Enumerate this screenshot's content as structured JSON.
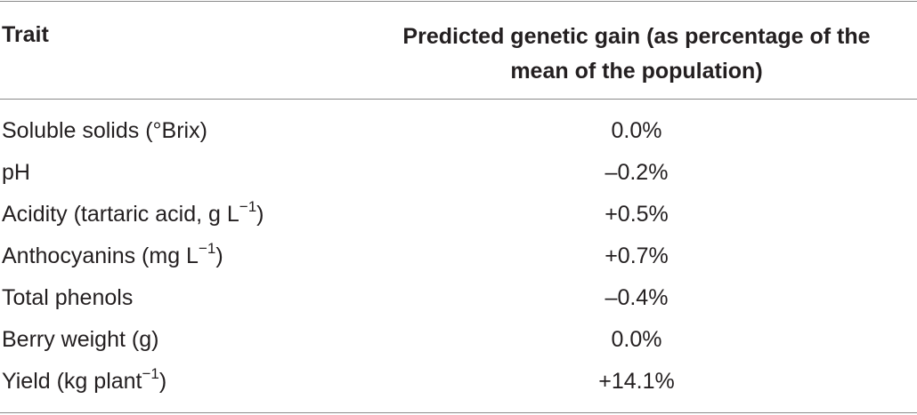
{
  "table": {
    "header": {
      "trait": "Trait",
      "gain": "Predicted genetic gain (as percentage of the\nmean of the population)"
    },
    "rows": [
      {
        "trait": "Soluble solids (°Brix)",
        "sup": "",
        "suffix": "",
        "gain": "0.0%"
      },
      {
        "trait": "pH",
        "sup": "",
        "suffix": "",
        "gain": "–0.2%"
      },
      {
        "trait": "Acidity (tartaric acid, g L",
        "sup": "−1",
        "suffix": ")",
        "gain": "+0.5%"
      },
      {
        "trait": "Anthocyanins (mg L",
        "sup": "−1",
        "suffix": ")",
        "gain": "+0.7%"
      },
      {
        "trait": "Total phenols",
        "sup": "",
        "suffix": "",
        "gain": "–0.4%"
      },
      {
        "trait": "Berry weight (g)",
        "sup": "",
        "suffix": "",
        "gain": "0.0%"
      },
      {
        "trait": "Yield (kg plant",
        "sup": "−1",
        "suffix": ")",
        "gain": "+14.1%"
      }
    ]
  }
}
